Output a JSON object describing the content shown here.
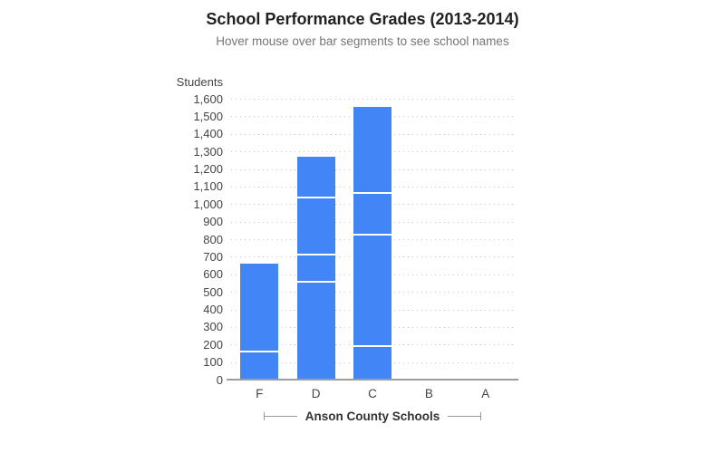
{
  "title": "School Performance Grades (2013-2014)",
  "subtitle": "Hover mouse over bar segments to see school names",
  "y_axis": {
    "label": "Students",
    "tick_labels": [
      "0",
      "100",
      "200",
      "300",
      "400",
      "500",
      "600",
      "700",
      "800",
      "900",
      "1,000",
      "1,100",
      "1,200",
      "1,300",
      "1,400",
      "1,500",
      "1,600"
    ],
    "min": 0,
    "max": 1600,
    "step": 100
  },
  "x_axis": {
    "label": "Anson County Schools",
    "categories": [
      "F",
      "D",
      "C",
      "B",
      "A"
    ]
  },
  "colors": {
    "bar": "#4285f4",
    "segment_gap": "#ffffff",
    "gridline": "#c7c7c7",
    "axis_line": "#9e9e9e",
    "tick_text": "#444444",
    "title_text": "#212121",
    "subtitle_text": "#757575",
    "axis_title_text": "#333333"
  },
  "chart_data": {
    "type": "bar",
    "stacked": true,
    "title": "School Performance Grades (2013-2014)",
    "subtitle": "Hover mouse over bar segments to see school names",
    "xlabel": "Anson County Schools",
    "ylabel": "Students",
    "categories": [
      "F",
      "D",
      "C",
      "B",
      "A"
    ],
    "stacks": {
      "F": [
        165,
        495
      ],
      "D": [
        565,
        150,
        330,
        225
      ],
      "C": [
        195,
        635,
        240,
        485
      ],
      "B": [],
      "A": []
    },
    "totals": [
      660,
      1270,
      1555,
      0,
      0
    ],
    "ylim": [
      0,
      1600
    ],
    "ytick_step": 100,
    "grid": "dotted horizontal",
    "legend": "none"
  }
}
